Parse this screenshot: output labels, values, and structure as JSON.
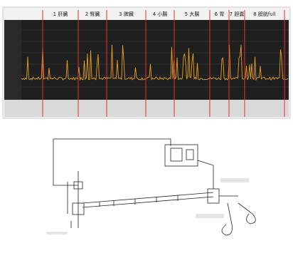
{
  "panel": {
    "labels": [
      "1 肝臓",
      "2 腎臓",
      "3 脾臓",
      "4 小腸",
      "5 大腸",
      "6 胃",
      "7 胆嚢",
      "8 膀胱full"
    ]
  }
}
